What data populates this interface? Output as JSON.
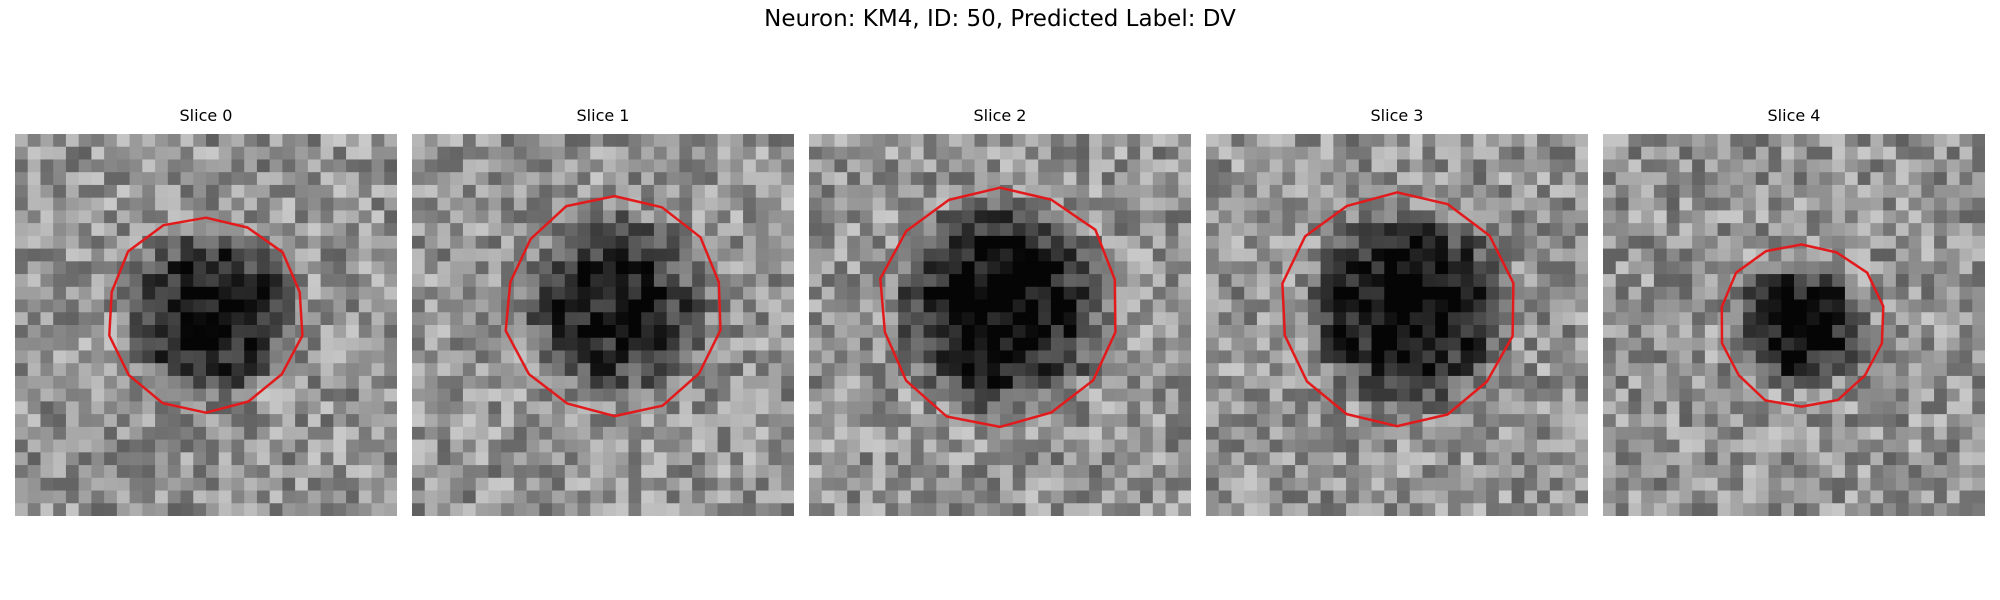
{
  "figure": {
    "suptitle": "Neuron: KM4, ID: 50, Predicted Label: DV",
    "contour_color": "#e31a1c"
  },
  "panels": [
    {
      "title": "Slice 0"
    },
    {
      "title": "Slice 1"
    },
    {
      "title": "Slice 2"
    },
    {
      "title": "Slice 3"
    },
    {
      "title": "Slice 4"
    }
  ]
}
